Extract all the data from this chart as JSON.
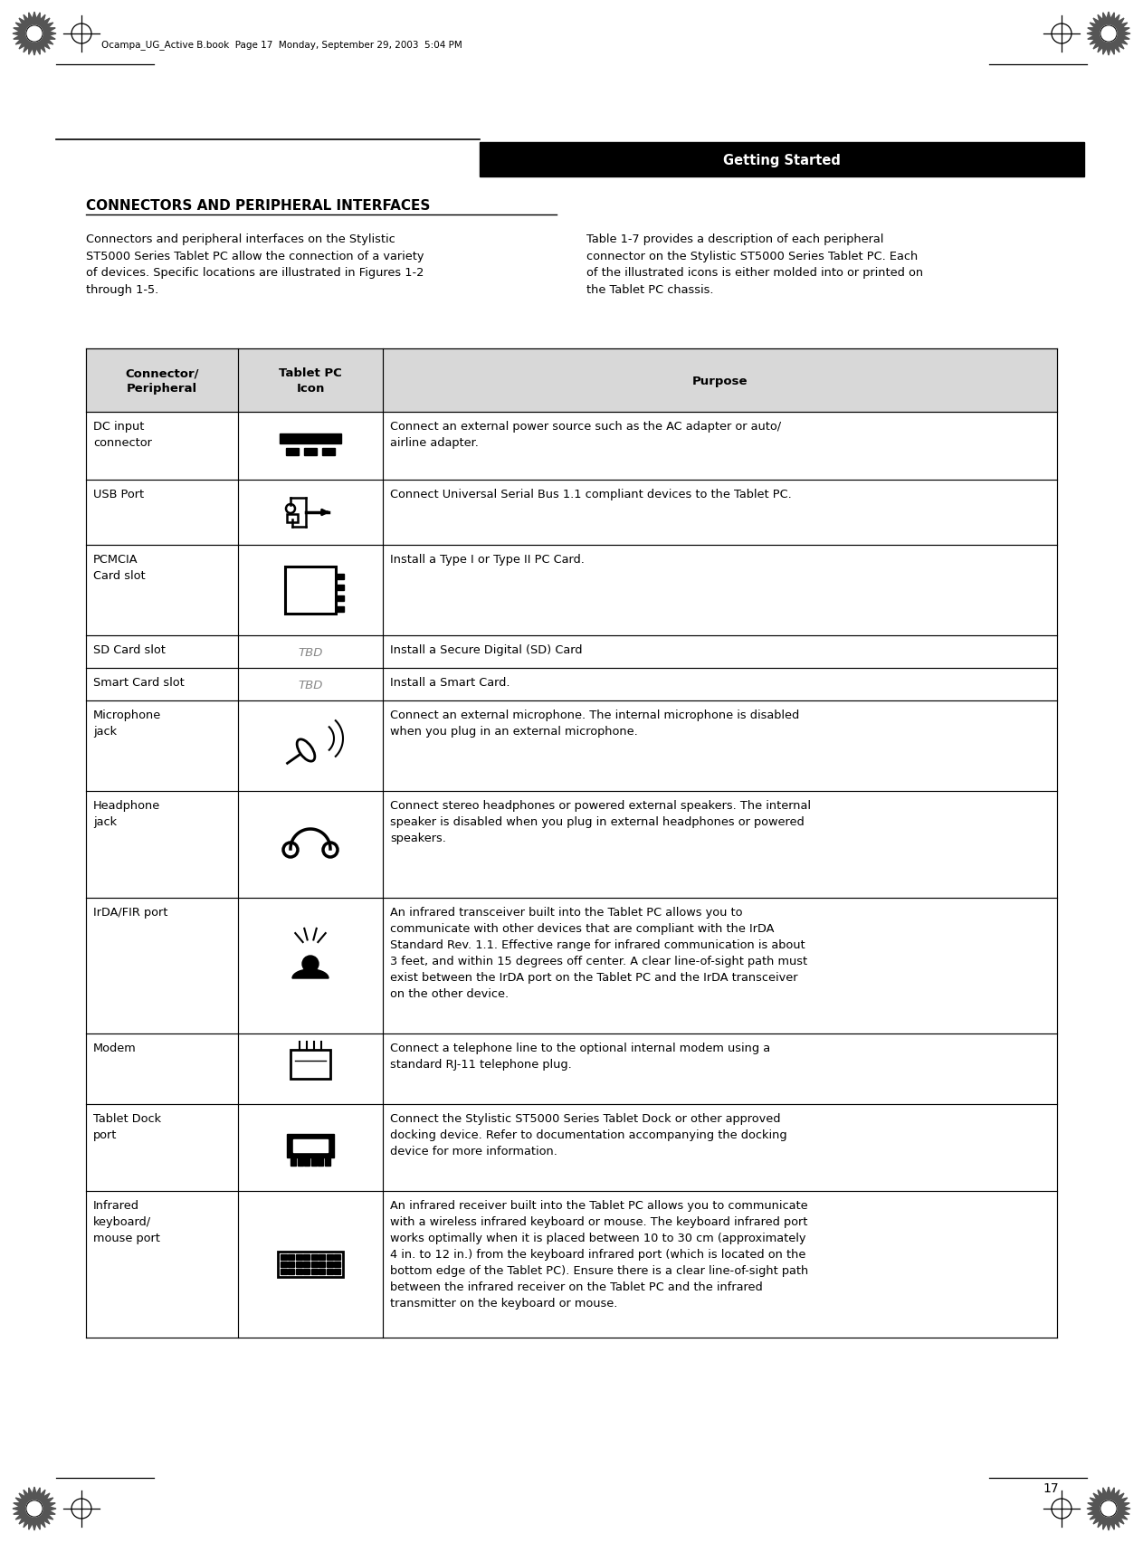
{
  "page_bg": "#ffffff",
  "header_bg": "#000000",
  "header_text": "Getting Started",
  "header_text_color": "#ffffff",
  "table_header_bg": "#d8d8d8",
  "table_border_color": "#000000",
  "section_title": "CONNECTORS AND PERIPHERAL INTERFACES",
  "intro_left": "Connectors and peripheral interfaces on the Stylistic\nST5000 Series Tablet PC allow the connection of a variety\nof devices. Specific locations are illustrated in Figures 1-2\nthrough 1-5.",
  "intro_right": "Table 1-7 provides a description of each peripheral\nconnector on the Stylistic ST5000 Series Tablet PC. Each\nof the illustrated icons is either molded into or printed on\nthe Tablet PC chassis.",
  "col1_label": "Connector/\nPeripheral",
  "col2_label": "Tablet PC\nIcon",
  "col3_label": "Purpose",
  "rows": [
    {
      "connector": "DC input\nconnector",
      "icon_type": "dc_input",
      "purpose": "Connect an external power source such as the AC adapter or auto/\nairline adapter."
    },
    {
      "connector": "USB Port",
      "icon_type": "usb",
      "purpose": "Connect Universal Serial Bus 1.1 compliant devices to the Tablet PC."
    },
    {
      "connector": "PCMCIA\nCard slot",
      "icon_type": "pcmcia",
      "purpose": "Install a Type I or Type II PC Card."
    },
    {
      "connector": "SD Card slot",
      "icon_type": "tbd",
      "purpose": "Install a Secure Digital (SD) Card"
    },
    {
      "connector": "Smart Card slot",
      "icon_type": "tbd",
      "purpose": "Install a Smart Card."
    },
    {
      "connector": "Microphone\njack",
      "icon_type": "microphone",
      "purpose": "Connect an external microphone. The internal microphone is disabled\nwhen you plug in an external microphone."
    },
    {
      "connector": "Headphone\njack",
      "icon_type": "headphone",
      "purpose": "Connect stereo headphones or powered external speakers. The internal\nspeaker is disabled when you plug in external headphones or powered\nspeakers."
    },
    {
      "connector": "IrDA/FIR port",
      "icon_type": "irda",
      "purpose": "An infrared transceiver built into the Tablet PC allows you to\ncommunicate with other devices that are compliant with the IrDA\nStandard Rev. 1.1. Effective range for infrared communication is about\n3 feet, and within 15 degrees off center. A clear line-of-sight path must\nexist between the IrDA port on the Tablet PC and the IrDA transceiver\non the other device."
    },
    {
      "connector": "Modem",
      "icon_type": "modem",
      "purpose": "Connect a telephone line to the optional internal modem using a\nstandard RJ-11 telephone plug."
    },
    {
      "connector": "Tablet Dock\nport",
      "icon_type": "tablet_dock",
      "purpose": "Connect the Stylistic ST5000 Series Tablet Dock or other approved\ndocking device. Refer to documentation accompanying the docking\ndevice for more information."
    },
    {
      "connector": "Infrared\nkeyboard/\nmouse port",
      "icon_type": "ir_keyboard",
      "purpose": "An infrared receiver built into the Tablet PC allows you to communicate\nwith a wireless infrared keyboard or mouse. The keyboard infrared port\nworks optimally when it is placed between 10 to 30 cm (approximately\n4 in. to 12 in.) from the keyboard infrared port (which is located on the\nbottom edge of the Tablet PC). Ensure there is a clear line-of-sight path\nbetween the infrared receiver on the Tablet PC and the infrared\ntransmitter on the keyboard or mouse."
    }
  ],
  "footer_number": "17",
  "file_info": "Ocampa_UG_Active B.book  Page 17  Monday, September 29, 2003  5:04 PM",
  "data_row_heights": [
    75,
    72,
    100,
    36,
    36,
    100,
    118,
    150,
    78,
    96,
    162
  ]
}
